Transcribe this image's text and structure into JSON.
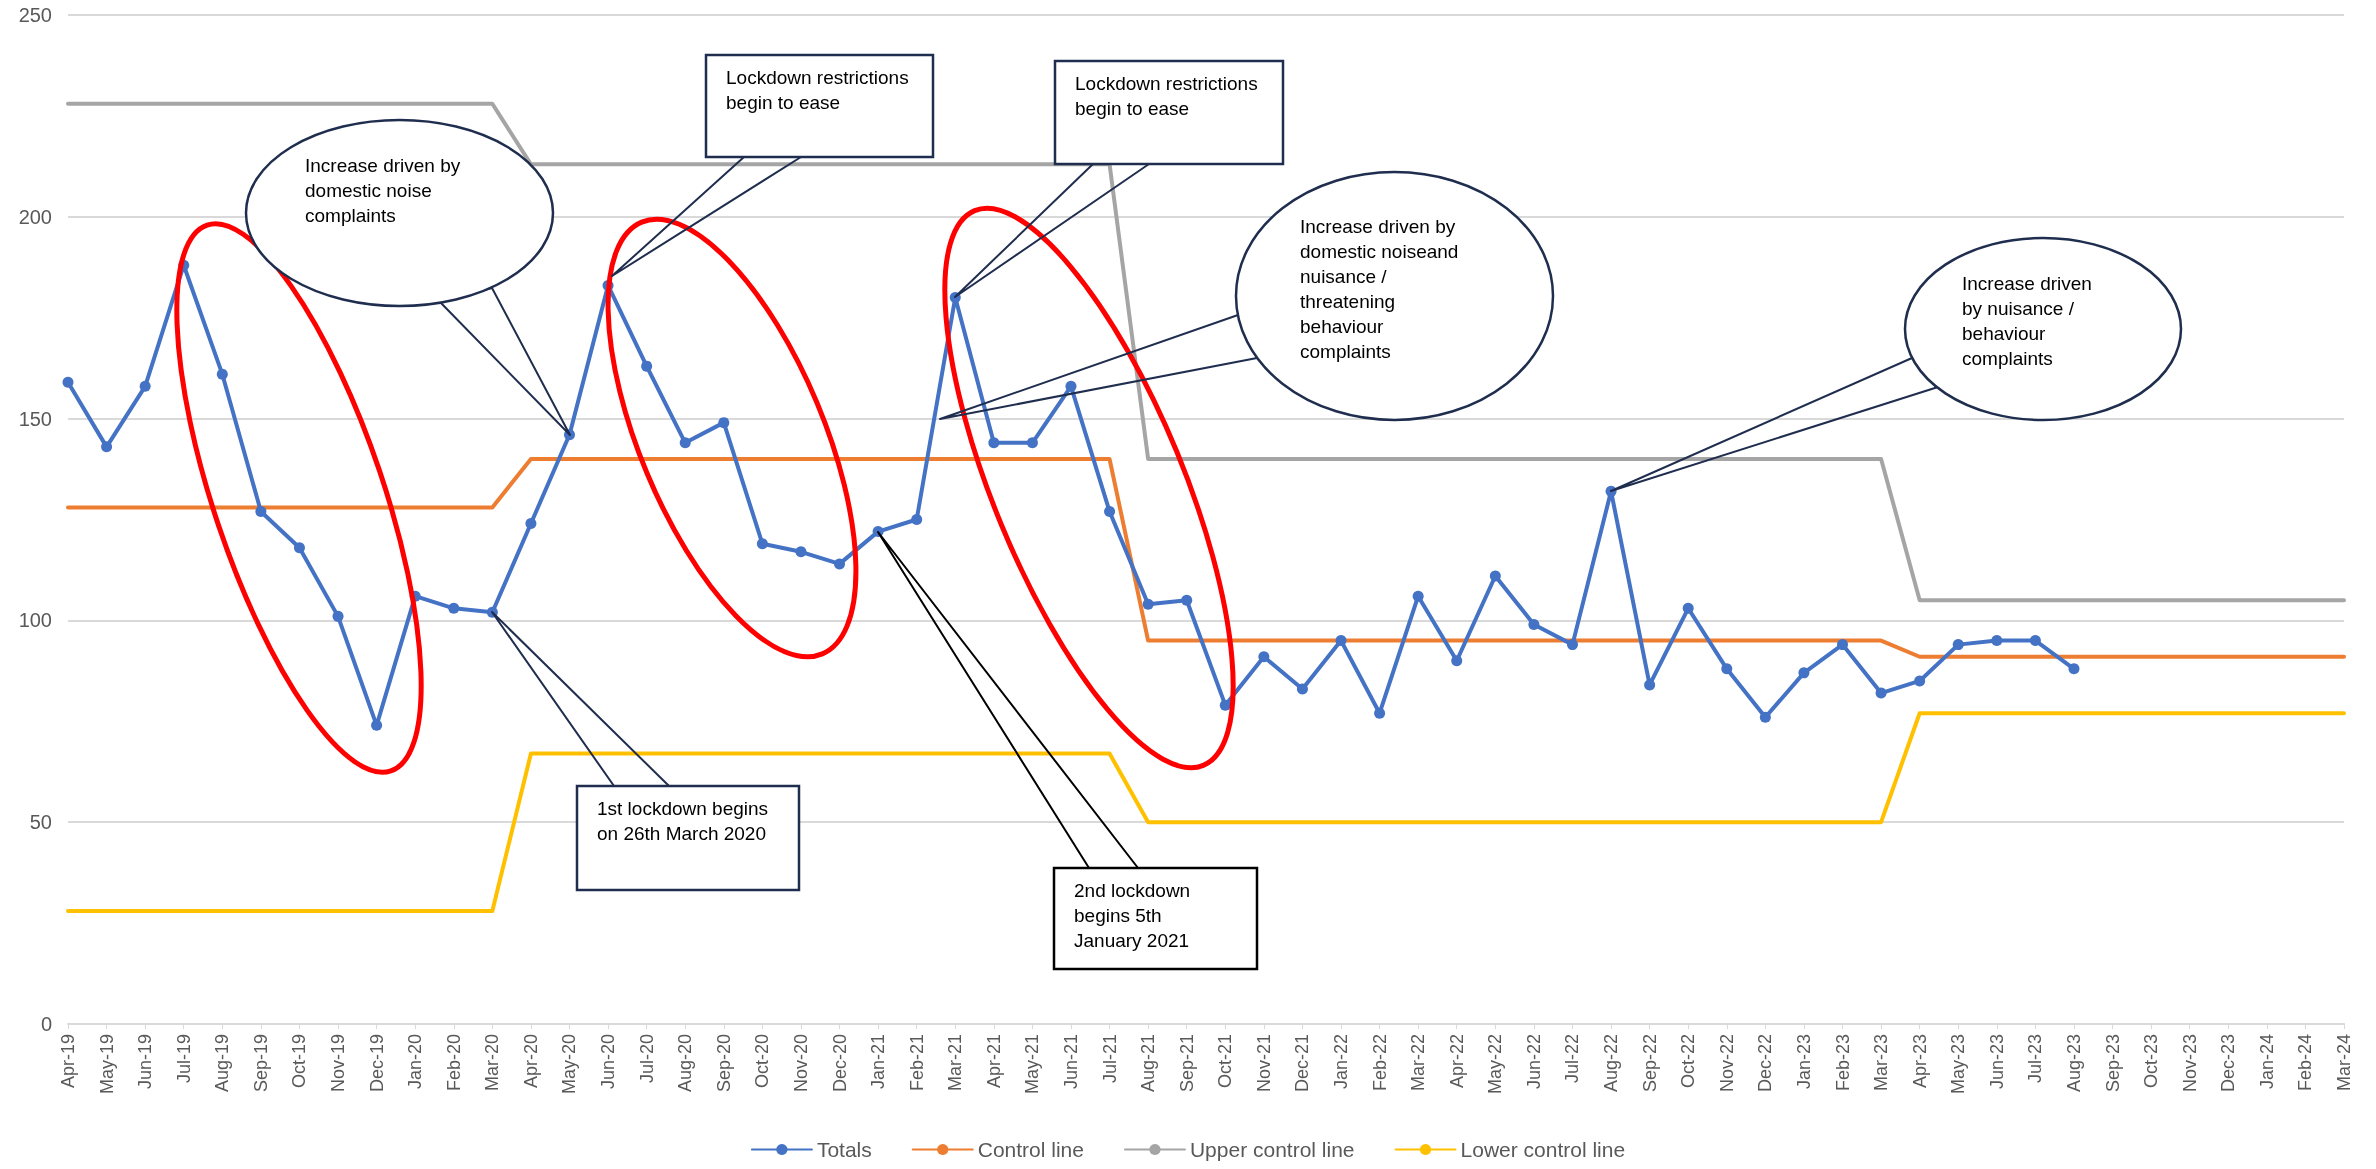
{
  "chart_data": {
    "type": "line",
    "categories": [
      "Apr-19",
      "May-19",
      "Jun-19",
      "Jul-19",
      "Aug-19",
      "Sep-19",
      "Oct-19",
      "Nov-19",
      "Dec-19",
      "Jan-20",
      "Feb-20",
      "Mar-20",
      "Apr-20",
      "May-20",
      "Jun-20",
      "Jul-20",
      "Aug-20",
      "Sep-20",
      "Oct-20",
      "Nov-20",
      "Dec-20",
      "Jan-21",
      "Feb-21",
      "Mar-21",
      "Apr-21",
      "May-21",
      "Jun-21",
      "Jul-21",
      "Aug-21",
      "Sep-21",
      "Oct-21",
      "Nov-21",
      "Dec-21",
      "Jan-22",
      "Feb-22",
      "Mar-22",
      "Apr-22",
      "May-22",
      "Jun-22",
      "Jul-22",
      "Aug-22",
      "Sep-22",
      "Oct-22",
      "Nov-22",
      "Dec-22",
      "Jan-23",
      "Feb-23",
      "Mar-23",
      "Apr-23",
      "May-23",
      "Jun-23",
      "Jul-23",
      "Aug-23",
      "Sep-23",
      "Oct-23",
      "Nov-23",
      "Dec-23",
      "Jan-24",
      "Feb-24",
      "Mar-24"
    ],
    "series": [
      {
        "name": "Totals",
        "color": "#4472c4",
        "marker": "circle",
        "values": [
          159,
          143,
          158,
          188,
          161,
          127,
          118,
          101,
          74,
          106,
          103,
          102,
          124,
          146,
          183,
          163,
          144,
          149,
          119,
          117,
          114,
          122,
          125,
          180,
          144,
          144,
          158,
          127,
          104,
          105,
          79,
          91,
          83,
          95,
          77,
          106,
          90,
          111,
          99,
          94,
          132,
          84,
          103,
          88,
          76,
          87,
          94,
          82,
          85,
          94,
          95,
          95,
          88,
          null,
          null,
          null,
          null,
          null,
          null,
          null
        ]
      },
      {
        "name": "Control line",
        "color": "#ed7d31",
        "marker": "none",
        "values": [
          128,
          128,
          128,
          128,
          128,
          128,
          128,
          128,
          128,
          128,
          128,
          128,
          140,
          140,
          140,
          140,
          140,
          140,
          140,
          140,
          140,
          140,
          140,
          140,
          140,
          140,
          140,
          140,
          95,
          95,
          95,
          95,
          95,
          95,
          95,
          95,
          95,
          95,
          95,
          95,
          95,
          95,
          95,
          95,
          95,
          95,
          95,
          95,
          91,
          91,
          91,
          91,
          91,
          91,
          91,
          91,
          91,
          91,
          91,
          91
        ]
      },
      {
        "name": "Upper control line",
        "color": "#a5a5a5",
        "marker": "none",
        "values": [
          228,
          228,
          228,
          228,
          228,
          228,
          228,
          228,
          228,
          228,
          228,
          228,
          213,
          213,
          213,
          213,
          213,
          213,
          213,
          213,
          213,
          213,
          213,
          213,
          213,
          213,
          213,
          213,
          140,
          140,
          140,
          140,
          140,
          140,
          140,
          140,
          140,
          140,
          140,
          140,
          140,
          140,
          140,
          140,
          140,
          140,
          140,
          140,
          105,
          105,
          105,
          105,
          105,
          105,
          105,
          105,
          105,
          105,
          105,
          105
        ]
      },
      {
        "name": "Lower control line",
        "color": "#ffc000",
        "marker": "none",
        "values": [
          28,
          28,
          28,
          28,
          28,
          28,
          28,
          28,
          28,
          28,
          28,
          28,
          67,
          67,
          67,
          67,
          67,
          67,
          67,
          67,
          67,
          67,
          67,
          67,
          67,
          67,
          67,
          67,
          50,
          50,
          50,
          50,
          50,
          50,
          50,
          50,
          50,
          50,
          50,
          50,
          50,
          50,
          50,
          50,
          50,
          50,
          50,
          50,
          77,
          77,
          77,
          77,
          77,
          77,
          77,
          77,
          77,
          77,
          77,
          77
        ]
      }
    ],
    "ylim": [
      0,
      250
    ],
    "yticks": [
      0,
      50,
      100,
      150,
      200,
      250
    ],
    "grid": "y",
    "legend": "bottom",
    "annotations": [
      "Increase driven by domestic noise complaints",
      "Lockdown restrictions begin to ease",
      "Lockdown restrictions begin to ease",
      "Increase driven by domestic noiseand nuisance / threatening behaviour complaints",
      "Increase driven by nuisance / behaviour complaints",
      "1st lockdown begins on 26th March 2020",
      "2nd lockdown begins 5th January 2021"
    ]
  }
}
